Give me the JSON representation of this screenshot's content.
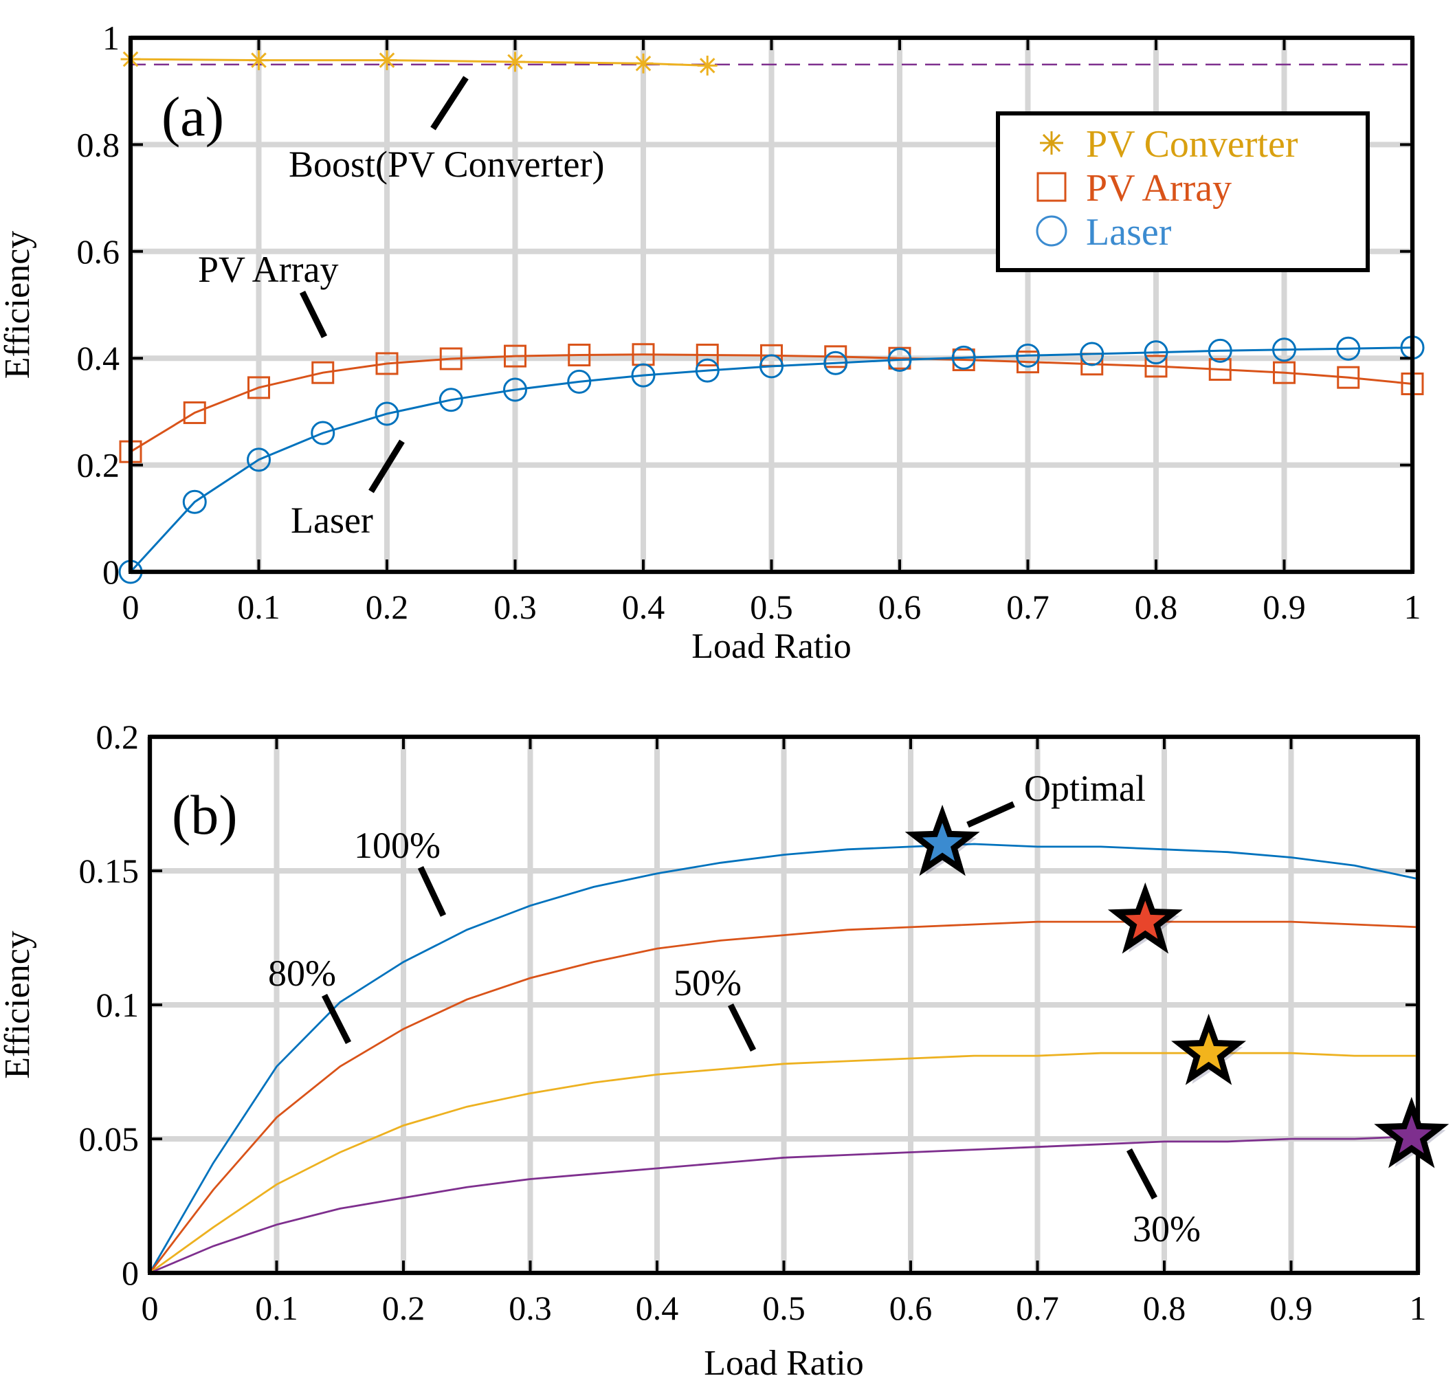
{
  "chart_data": [
    {
      "panel_label": "(a)",
      "type": "line",
      "xlabel": "Load Ratio",
      "ylabel": "Efficiency",
      "xlim": [
        0,
        1
      ],
      "ylim": [
        0,
        1
      ],
      "xticks": [
        "0",
        "0.1",
        "0.2",
        "0.3",
        "0.4",
        "0.5",
        "0.6",
        "0.7",
        "0.8",
        "0.9",
        "1"
      ],
      "yticks": [
        "0",
        "0.2",
        "0.4",
        "0.6",
        "0.8",
        "1"
      ],
      "grid": true,
      "legend": {
        "position": "top-right",
        "entries": [
          {
            "label": "PV Converter",
            "marker": "asterisk",
            "color": "#D9A010"
          },
          {
            "label": "PV Array",
            "marker": "square",
            "color": "#D95319"
          },
          {
            "label": "Laser",
            "marker": "circle",
            "color": "#3B8BD0"
          }
        ]
      },
      "reference_line": {
        "y": 0.95,
        "style": "dashed",
        "color": "#7E2F8E"
      },
      "series": [
        {
          "name": "PV Converter",
          "color": "#EDB120",
          "marker": "asterisk",
          "x": [
            0,
            0.1,
            0.2,
            0.3,
            0.4,
            0.45
          ],
          "y": [
            0.96,
            0.958,
            0.958,
            0.955,
            0.952,
            0.948
          ]
        },
        {
          "name": "PV Array",
          "color": "#D95319",
          "marker": "square",
          "x": [
            0,
            0.05,
            0.1,
            0.15,
            0.2,
            0.25,
            0.3,
            0.35,
            0.4,
            0.45,
            0.5,
            0.55,
            0.6,
            0.65,
            0.7,
            0.75,
            0.8,
            0.85,
            0.9,
            0.95,
            1.0
          ],
          "y": [
            0.225,
            0.298,
            0.345,
            0.373,
            0.39,
            0.399,
            0.404,
            0.406,
            0.407,
            0.406,
            0.405,
            0.403,
            0.4,
            0.397,
            0.393,
            0.389,
            0.385,
            0.379,
            0.373,
            0.364,
            0.352
          ]
        },
        {
          "name": "Laser",
          "color": "#0072BD",
          "marker": "circle",
          "x": [
            0,
            0.05,
            0.1,
            0.15,
            0.2,
            0.25,
            0.3,
            0.35,
            0.4,
            0.45,
            0.5,
            0.55,
            0.6,
            0.65,
            0.7,
            0.75,
            0.8,
            0.85,
            0.9,
            0.95,
            1.0
          ],
          "y": [
            0.0,
            0.131,
            0.21,
            0.26,
            0.296,
            0.322,
            0.341,
            0.356,
            0.368,
            0.377,
            0.385,
            0.391,
            0.397,
            0.401,
            0.405,
            0.408,
            0.411,
            0.414,
            0.416,
            0.418,
            0.42
          ]
        }
      ],
      "annotations": [
        {
          "text": "Boost(PV Converter)"
        },
        {
          "text": "PV Array"
        },
        {
          "text": "Laser"
        }
      ]
    },
    {
      "panel_label": "(b)",
      "type": "line",
      "xlabel": "Load Ratio",
      "ylabel": "Efficiency",
      "xlim": [
        0,
        1
      ],
      "ylim": [
        0,
        0.2
      ],
      "xticks": [
        "0",
        "0.1",
        "0.2",
        "0.3",
        "0.4",
        "0.5",
        "0.6",
        "0.7",
        "0.8",
        "0.9",
        "1"
      ],
      "yticks": [
        "0",
        "0.05",
        "0.1",
        "0.15",
        "0.2"
      ],
      "grid": true,
      "series": [
        {
          "name": "100%",
          "color": "#0072BD",
          "x": [
            0,
            0.05,
            0.1,
            0.15,
            0.2,
            0.25,
            0.3,
            0.35,
            0.4,
            0.45,
            0.5,
            0.55,
            0.6,
            0.65,
            0.7,
            0.75,
            0.8,
            0.85,
            0.9,
            0.95,
            1.0
          ],
          "y": [
            0,
            0.041,
            0.077,
            0.101,
            0.116,
            0.128,
            0.137,
            0.144,
            0.149,
            0.153,
            0.156,
            0.158,
            0.159,
            0.16,
            0.159,
            0.159,
            0.158,
            0.157,
            0.155,
            0.152,
            0.147
          ]
        },
        {
          "name": "80%",
          "color": "#D95319",
          "x": [
            0,
            0.05,
            0.1,
            0.15,
            0.2,
            0.25,
            0.3,
            0.35,
            0.4,
            0.45,
            0.5,
            0.55,
            0.6,
            0.65,
            0.7,
            0.75,
            0.8,
            0.85,
            0.9,
            0.95,
            1.0
          ],
          "y": [
            0,
            0.031,
            0.058,
            0.077,
            0.091,
            0.102,
            0.11,
            0.116,
            0.121,
            0.124,
            0.126,
            0.128,
            0.129,
            0.13,
            0.131,
            0.131,
            0.131,
            0.131,
            0.131,
            0.13,
            0.129
          ]
        },
        {
          "name": "50%",
          "color": "#EDB120",
          "x": [
            0,
            0.05,
            0.1,
            0.15,
            0.2,
            0.25,
            0.3,
            0.35,
            0.4,
            0.45,
            0.5,
            0.55,
            0.6,
            0.65,
            0.7,
            0.75,
            0.8,
            0.85,
            0.9,
            0.95,
            1.0
          ],
          "y": [
            0,
            0.017,
            0.033,
            0.045,
            0.055,
            0.062,
            0.067,
            0.071,
            0.074,
            0.076,
            0.078,
            0.079,
            0.08,
            0.081,
            0.081,
            0.082,
            0.082,
            0.082,
            0.082,
            0.081,
            0.081
          ]
        },
        {
          "name": "30%",
          "color": "#7E2F8E",
          "x": [
            0,
            0.05,
            0.1,
            0.15,
            0.2,
            0.25,
            0.3,
            0.35,
            0.4,
            0.45,
            0.5,
            0.55,
            0.6,
            0.65,
            0.7,
            0.75,
            0.8,
            0.85,
            0.9,
            0.95,
            1.0
          ],
          "y": [
            0,
            0.01,
            0.018,
            0.024,
            0.028,
            0.032,
            0.035,
            0.037,
            0.039,
            0.041,
            0.043,
            0.044,
            0.045,
            0.046,
            0.047,
            0.048,
            0.049,
            0.049,
            0.05,
            0.05,
            0.051
          ]
        }
      ],
      "optimal_points": [
        {
          "x": 0.625,
          "y": 0.16,
          "color": "#3B8BD0"
        },
        {
          "x": 0.785,
          "y": 0.131,
          "color": "#E8452B"
        },
        {
          "x": 0.835,
          "y": 0.082,
          "color": "#F2B41C"
        },
        {
          "x": 0.995,
          "y": 0.051,
          "color": "#7E2F8E"
        }
      ],
      "annotations": [
        {
          "text": "Optimal"
        },
        {
          "text": "100%"
        },
        {
          "text": "80%"
        },
        {
          "text": "50%"
        },
        {
          "text": "30%"
        }
      ]
    }
  ]
}
